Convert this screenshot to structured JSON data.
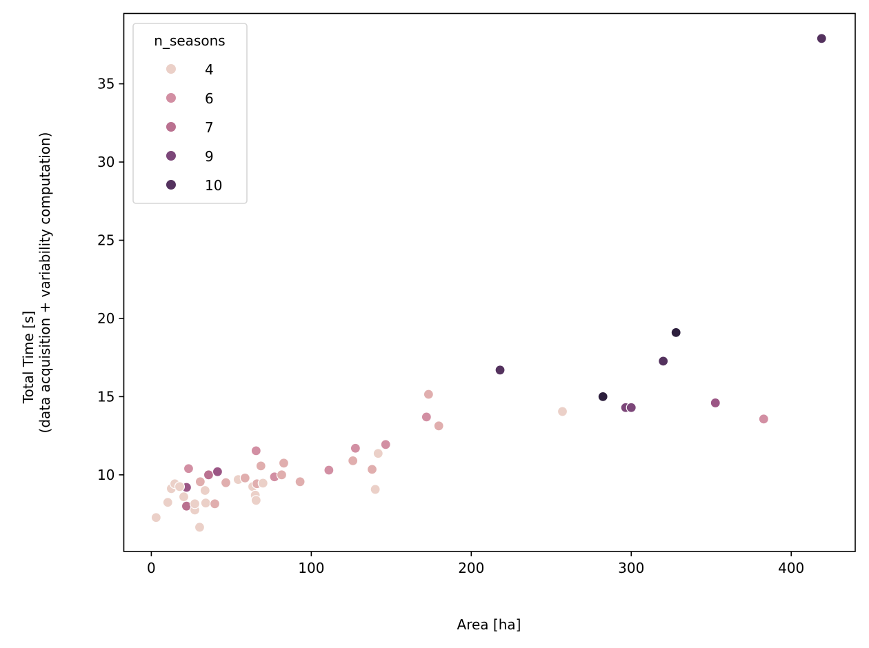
{
  "chart_data": {
    "type": "scatter",
    "title": "",
    "xlabel": "Area [ha]",
    "ylabel_lines": [
      "Total Time [s]",
      "(data acquisition + variability computation)"
    ],
    "xlim": [
      -17.2,
      440
    ],
    "ylim": [
      5.1,
      39.5
    ],
    "xticks": [
      0,
      100,
      200,
      300,
      400
    ],
    "yticks": [
      10,
      15,
      20,
      25,
      30,
      35
    ],
    "grid": false,
    "legend": {
      "title": "n_seasons",
      "placement": "top-left",
      "entries": [
        {
          "label": "4",
          "n": 4
        },
        {
          "label": "6",
          "n": 6
        },
        {
          "label": "7",
          "n": 7
        },
        {
          "label": "9",
          "n": 9
        },
        {
          "label": "10",
          "n": 10
        }
      ]
    },
    "palette": {
      "4": "#ebd0c8",
      "5": "#e0aeae",
      "6": "#d28fa3",
      "7": "#ba7190",
      "8": "#9b5685",
      "9": "#7c4779",
      "10": "#54325e",
      "11": "#2d1f3d"
    },
    "points": [
      {
        "x": 3,
        "y": 7.27,
        "n": 4
      },
      {
        "x": 10.3,
        "y": 8.24,
        "n": 4
      },
      {
        "x": 12.5,
        "y": 9.12,
        "n": 4
      },
      {
        "x": 14.7,
        "y": 9.43,
        "n": 4
      },
      {
        "x": 20.3,
        "y": 8.6,
        "n": 4
      },
      {
        "x": 22,
        "y": 8.0,
        "n": 7
      },
      {
        "x": 22,
        "y": 9.2,
        "n": 8
      },
      {
        "x": 23.3,
        "y": 10.4,
        "n": 6
      },
      {
        "x": 27.2,
        "y": 7.75,
        "n": 4
      },
      {
        "x": 27.2,
        "y": 8.15,
        "n": 4
      },
      {
        "x": 30.2,
        "y": 6.65,
        "n": 4
      },
      {
        "x": 30.6,
        "y": 9.56,
        "n": 5
      },
      {
        "x": 33.6,
        "y": 9.0,
        "n": 4
      },
      {
        "x": 34,
        "y": 8.2,
        "n": 4
      },
      {
        "x": 35.8,
        "y": 10.0,
        "n": 7
      },
      {
        "x": 39.7,
        "y": 8.15,
        "n": 5
      },
      {
        "x": 41.4,
        "y": 10.2,
        "n": 8
      },
      {
        "x": 46.6,
        "y": 9.5,
        "n": 5
      },
      {
        "x": 54.3,
        "y": 9.7,
        "n": 4
      },
      {
        "x": 58.6,
        "y": 9.8,
        "n": 5
      },
      {
        "x": 63.4,
        "y": 9.25,
        "n": 4
      },
      {
        "x": 65,
        "y": 8.7,
        "n": 4
      },
      {
        "x": 65.5,
        "y": 8.37,
        "n": 4
      },
      {
        "x": 65.5,
        "y": 11.54,
        "n": 6
      },
      {
        "x": 66,
        "y": 9.43,
        "n": 5
      },
      {
        "x": 68.5,
        "y": 10.57,
        "n": 5
      },
      {
        "x": 69.8,
        "y": 9.47,
        "n": 4
      },
      {
        "x": 77,
        "y": 9.87,
        "n": 6
      },
      {
        "x": 81.5,
        "y": 10.0,
        "n": 5
      },
      {
        "x": 82.8,
        "y": 10.75,
        "n": 5
      },
      {
        "x": 93,
        "y": 9.56,
        "n": 5
      },
      {
        "x": 111,
        "y": 10.3,
        "n": 6
      },
      {
        "x": 126,
        "y": 10.9,
        "n": 5
      },
      {
        "x": 127.6,
        "y": 11.7,
        "n": 6
      },
      {
        "x": 138,
        "y": 10.35,
        "n": 5
      },
      {
        "x": 140,
        "y": 9.07,
        "n": 4
      },
      {
        "x": 141.8,
        "y": 11.37,
        "n": 4
      },
      {
        "x": 146.5,
        "y": 11.94,
        "n": 6
      },
      {
        "x": 172,
        "y": 13.7,
        "n": 6
      },
      {
        "x": 173.3,
        "y": 15.15,
        "n": 5
      },
      {
        "x": 179.7,
        "y": 13.13,
        "n": 5
      },
      {
        "x": 218,
        "y": 16.7,
        "n": 10
      },
      {
        "x": 257,
        "y": 14.05,
        "n": 4
      },
      {
        "x": 282.3,
        "y": 15.0,
        "n": 11
      },
      {
        "x": 296.5,
        "y": 14.3,
        "n": 9
      },
      {
        "x": 300,
        "y": 14.3,
        "n": 9
      },
      {
        "x": 320,
        "y": 17.27,
        "n": 10
      },
      {
        "x": 328,
        "y": 19.1,
        "n": 11
      },
      {
        "x": 352.6,
        "y": 14.6,
        "n": 8
      },
      {
        "x": 382.8,
        "y": 13.57,
        "n": 6
      },
      {
        "x": 419,
        "y": 37.9,
        "n": 10
      },
      {
        "x": 17.7,
        "y": 9.25,
        "n": 4
      }
    ]
  }
}
